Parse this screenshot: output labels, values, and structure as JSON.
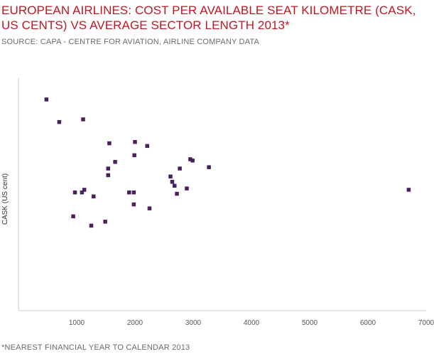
{
  "header": {
    "title": "EUROPEAN AIRLINES: COST PER AVAILABLE SEAT KILOMETRE (CASK, US CENTS) VS AVERAGE SECTOR LENGTH 2013*",
    "source": "SOURCE: CAPA - CENTRE FOR AVIATION, AIRLINE COMPANY DATA"
  },
  "footnote": "*NEAREST FINANCIAL YEAR TO CALENDAR 2013",
  "colors": {
    "title": "#c2151f",
    "points": "#4a1f5e",
    "axis": "#cccccc"
  },
  "chart_data": {
    "type": "scatter",
    "title": "EUROPEAN AIRLINES: COST PER AVAILABLE SEAT KILOMETRE (CASK, US CENTS) VS AVERAGE SECTOR LENGTH 2013*",
    "xlabel": "",
    "ylabel": "CASK (US cent)",
    "xlim": [
      0,
      7000
    ],
    "ylim": [
      0,
      17.5
    ],
    "x_ticks": [
      1000,
      2000,
      3000,
      4000,
      5000,
      6000,
      7000
    ],
    "y_ticks_shown": false,
    "grid": false,
    "legend": "none",
    "points": [
      {
        "x": 480,
        "y": 15.9
      },
      {
        "x": 700,
        "y": 14.2
      },
      {
        "x": 1110,
        "y": 14.4
      },
      {
        "x": 2000,
        "y": 12.7
      },
      {
        "x": 1560,
        "y": 12.6
      },
      {
        "x": 2210,
        "y": 12.4
      },
      {
        "x": 1990,
        "y": 11.7
      },
      {
        "x": 2950,
        "y": 11.4
      },
      {
        "x": 2990,
        "y": 11.3
      },
      {
        "x": 1660,
        "y": 11.2
      },
      {
        "x": 3270,
        "y": 10.8
      },
      {
        "x": 1540,
        "y": 10.7
      },
      {
        "x": 2770,
        "y": 10.7
      },
      {
        "x": 1540,
        "y": 10.2
      },
      {
        "x": 2610,
        "y": 10.1
      },
      {
        "x": 2640,
        "y": 9.7
      },
      {
        "x": 2680,
        "y": 9.4
      },
      {
        "x": 2890,
        "y": 9.2
      },
      {
        "x": 1130,
        "y": 9.1
      },
      {
        "x": 6700,
        "y": 9.1
      },
      {
        "x": 970,
        "y": 8.9
      },
      {
        "x": 1090,
        "y": 8.9
      },
      {
        "x": 1900,
        "y": 8.9
      },
      {
        "x": 1980,
        "y": 8.9
      },
      {
        "x": 2720,
        "y": 8.8
      },
      {
        "x": 1290,
        "y": 8.6
      },
      {
        "x": 1980,
        "y": 8.0
      },
      {
        "x": 2250,
        "y": 7.7
      },
      {
        "x": 940,
        "y": 7.1
      },
      {
        "x": 1490,
        "y": 6.7
      },
      {
        "x": 1250,
        "y": 6.4
      }
    ]
  }
}
